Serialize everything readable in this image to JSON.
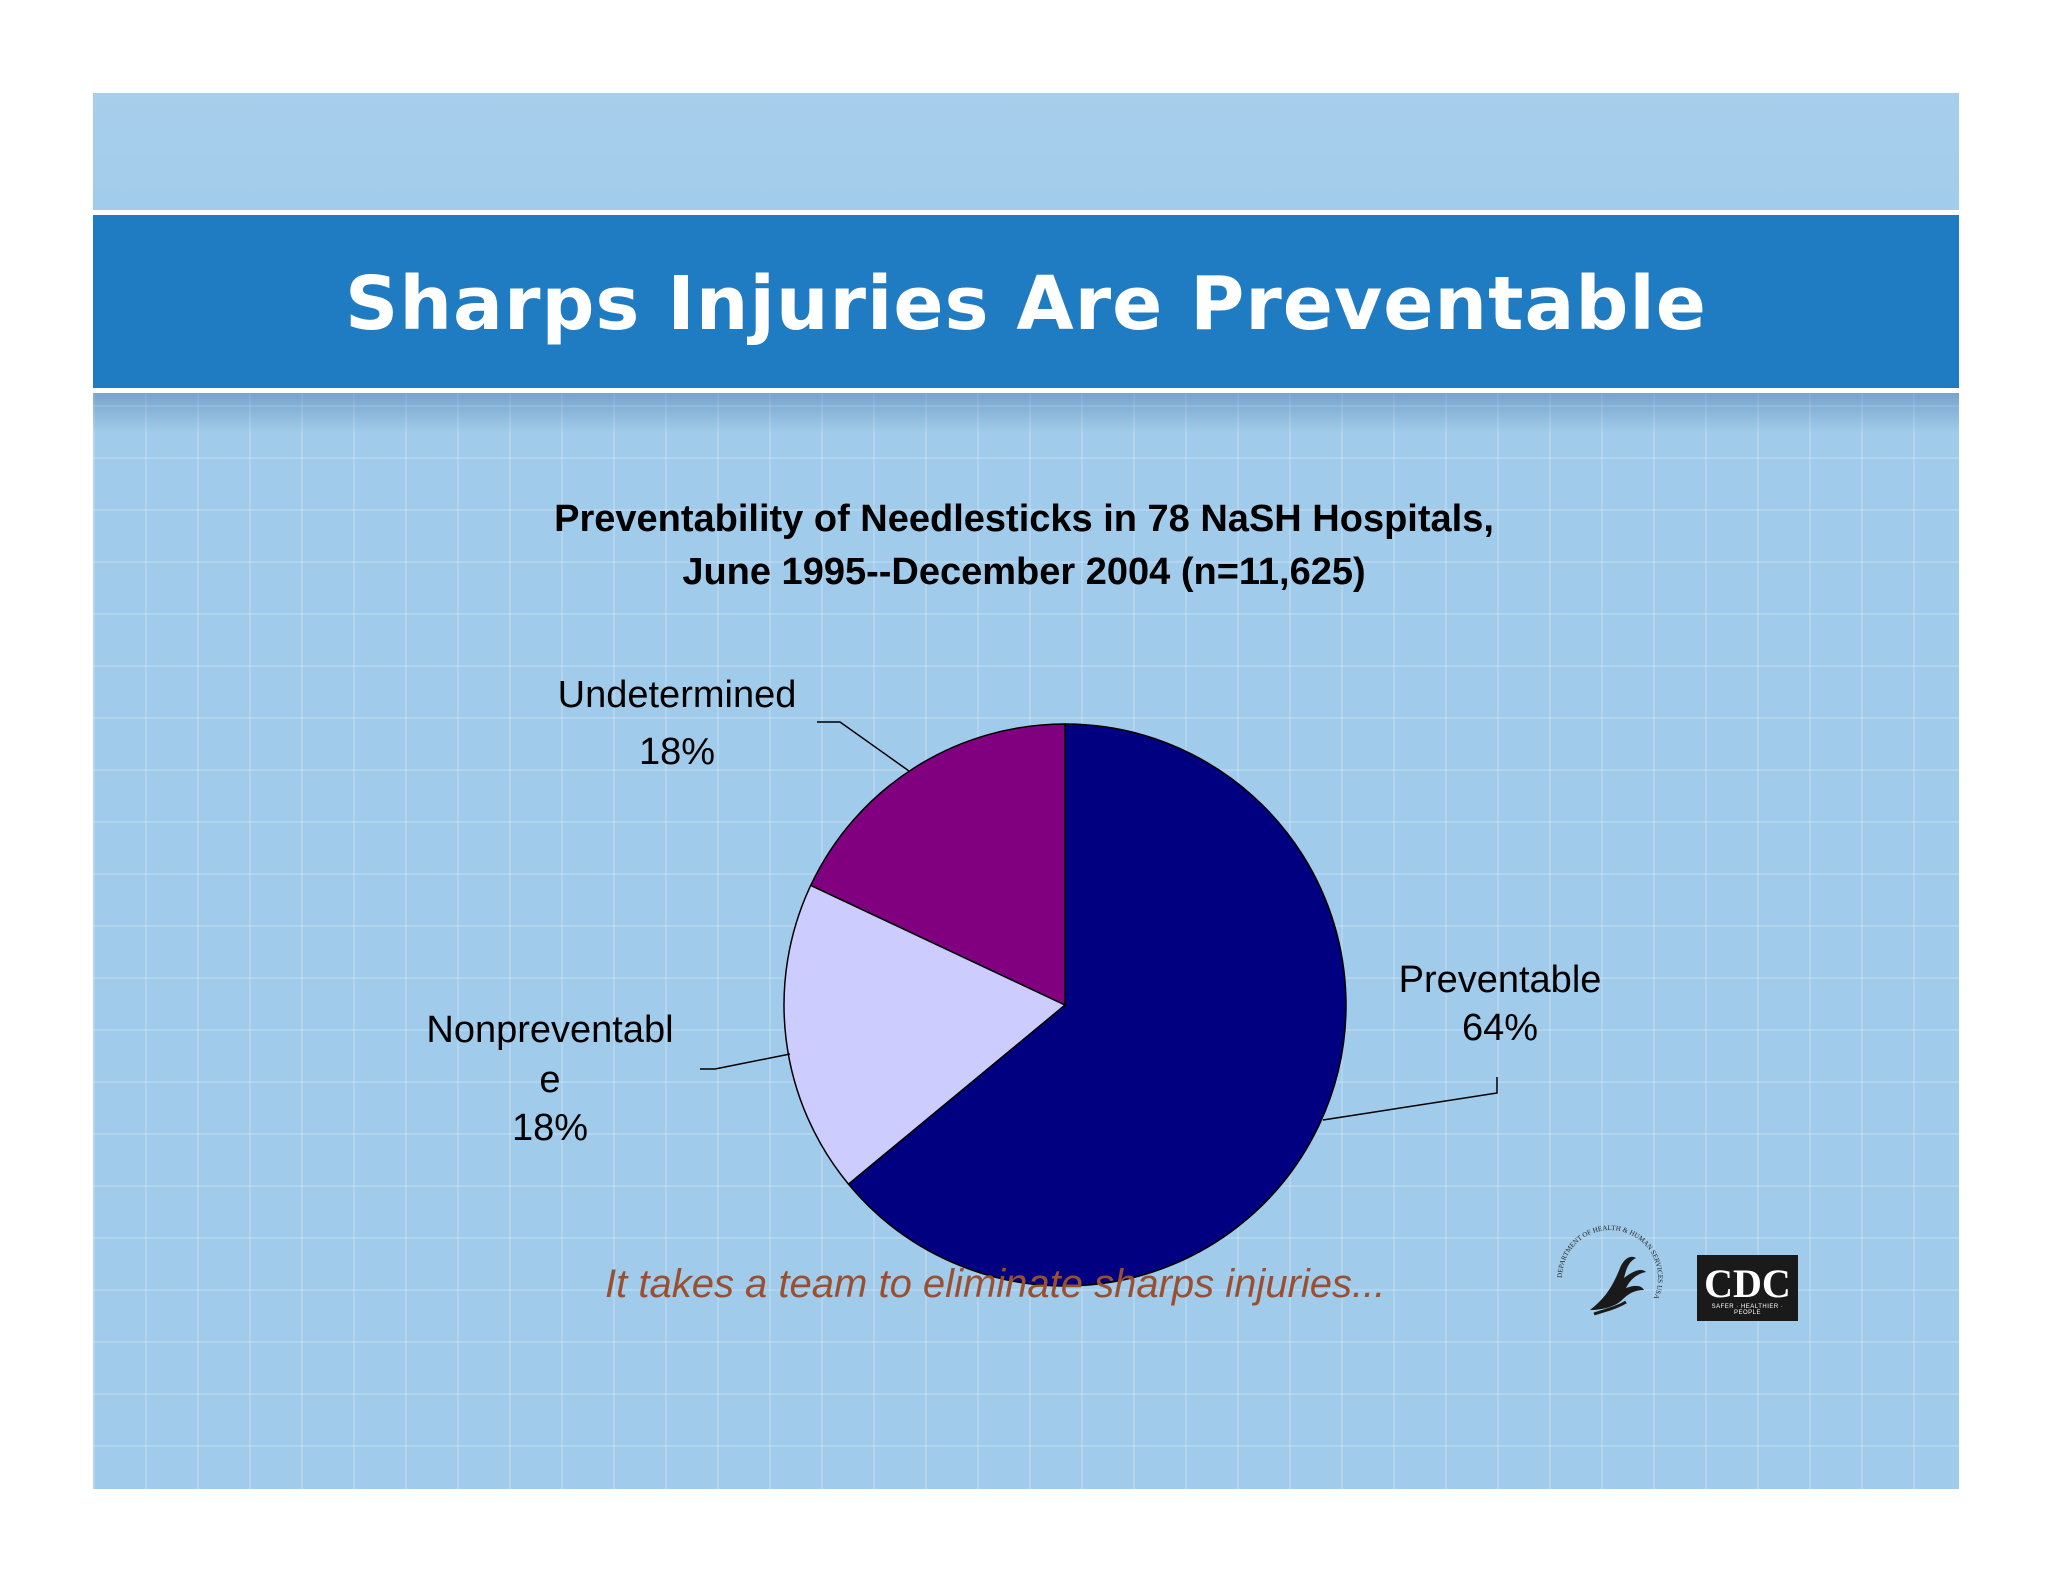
{
  "slide": {
    "title": "Sharps Injuries Are Preventable",
    "tagline": "It takes a team to eliminate sharps injuries...",
    "logos": {
      "hhs": {
        "icon": "hhs-eagle-seal-icon",
        "seal_text": "DEPARTMENT OF HEALTH & HUMAN SERVICES USA"
      },
      "cdc": {
        "icon": "cdc-logo-icon",
        "text": "CDC",
        "subtext": "SAFER · HEALTHIER · PEOPLE"
      }
    },
    "colors": {
      "background": "#a1cbea",
      "banner": "#1f7bc2",
      "tagline": "#9a5030"
    }
  },
  "chart_data": {
    "type": "pie",
    "title_line1": "Preventability of Needlesticks in 78 NaSH Hospitals,",
    "title_line2": "June 1995--December 2004 (n=11,625)",
    "slices": [
      {
        "label": "Preventable",
        "value": 64,
        "value_label": "64%",
        "color": "#000080"
      },
      {
        "label_lines": [
          "Nonpreventabl",
          "e"
        ],
        "value": 18,
        "value_label": "18%",
        "color": "#ccccff"
      },
      {
        "label": "Undetermined",
        "value": 18,
        "value_label": "18%",
        "color": "#800080"
      }
    ],
    "start_angle_deg": 0,
    "direction": "clockwise",
    "legend": "none",
    "data_labels": "outside with leader lines"
  }
}
